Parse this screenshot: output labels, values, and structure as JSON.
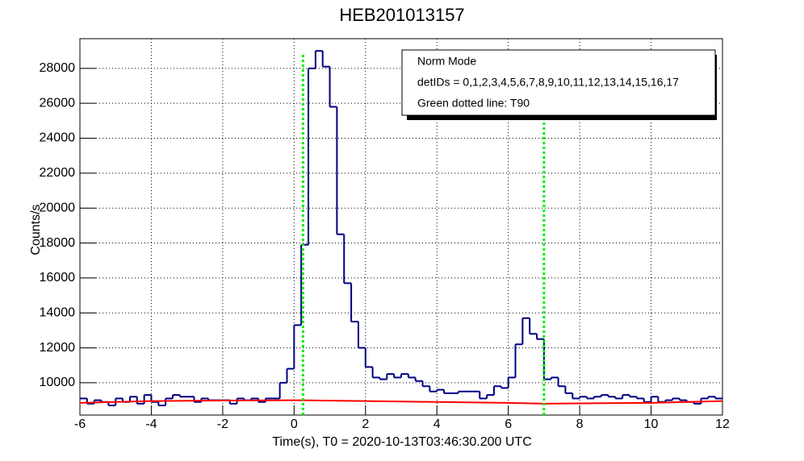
{
  "chart_data": {
    "type": "histogram",
    "title": "HEB201013157",
    "x_label": "Time(s), T0 = 2020-10-13T03:46:30.200 UTC",
    "y_label": "Counts/s",
    "xlim": [
      -6,
      12
    ],
    "xticks": [
      -6,
      -4,
      -2,
      0,
      2,
      4,
      6,
      8,
      10,
      12
    ],
    "ylim": [
      8150,
      29700
    ],
    "yticks": [
      10000,
      12000,
      14000,
      16000,
      18000,
      20000,
      22000,
      24000,
      26000,
      28000
    ],
    "grid": true,
    "color": "#000080",
    "bins": [
      -6,
      -5.8,
      -5.6,
      -5.4,
      -5.2,
      -5,
      -4.8,
      -4.6,
      -4.4,
      -4.2,
      -4,
      -3.8,
      -3.6,
      -3.4,
      -3.2,
      -3,
      -2.8,
      -2.6,
      -2.4,
      -2.2,
      -2,
      -1.8,
      -1.6,
      -1.4,
      -1.2,
      -1,
      -0.8,
      -0.6,
      -0.4,
      -0.2,
      0,
      0.2,
      0.4,
      0.6,
      0.8,
      1,
      1.2,
      1.4,
      1.6,
      1.8,
      2,
      2.2,
      2.4,
      2.6,
      2.8,
      3,
      3.2,
      3.4,
      3.6,
      3.8,
      4,
      4.2,
      4.4,
      4.6,
      4.8,
      5,
      5.2,
      5.4,
      5.6,
      5.8,
      6,
      6.2,
      6.4,
      6.6,
      6.8,
      7,
      7.2,
      7.4,
      7.6,
      7.8,
      8,
      8.2,
      8.4,
      8.6,
      8.8,
      9,
      9.2,
      9.4,
      9.6,
      9.8,
      10,
      10.2,
      10.4,
      10.6,
      10.8,
      11,
      11.2,
      11.4,
      11.6,
      11.8,
      12
    ],
    "values": [
      9100,
      8800,
      9000,
      8900,
      8700,
      9100,
      8900,
      9200,
      8800,
      9300,
      8900,
      8700,
      9100,
      9300,
      9200,
      9200,
      8900,
      9100,
      9000,
      9000,
      9000,
      8800,
      9100,
      9000,
      9100,
      8900,
      9100,
      9100,
      10000,
      10800,
      13300,
      17900,
      28000,
      29000,
      28100,
      25800,
      18500,
      15700,
      13500,
      12000,
      10900,
      10300,
      10200,
      10500,
      10300,
      10500,
      10300,
      10100,
      9800,
      9500,
      9600,
      9400,
      9400,
      9500,
      9500,
      9500,
      9100,
      9300,
      9800,
      9700,
      10300,
      12200,
      13700,
      12800,
      12500,
      10200,
      10300,
      9800,
      9400,
      9100,
      9200,
      9100,
      9200,
      9300,
      9200,
      9100,
      9300,
      9200,
      9100,
      8900,
      9200,
      8900,
      9000,
      9100,
      9000,
      8900,
      8800,
      9100,
      9200,
      9100
    ],
    "background": {
      "color": "#ff0000",
      "x": [
        -6,
        -4,
        -2,
        0,
        2,
        4,
        6,
        7,
        8,
        10,
        12
      ],
      "values": [
        8850,
        8950,
        8980,
        9000,
        8950,
        8900,
        8850,
        8800,
        8820,
        8850,
        8950
      ]
    },
    "vlines": {
      "color": "#00ee00",
      "x": [
        0.25,
        7.0
      ]
    },
    "legend": [
      "Norm Mode",
      "detIDs = 0,1,2,3,4,5,6,7,8,9,10,11,12,13,14,15,16,17",
      "Green dotted line: T90"
    ]
  }
}
